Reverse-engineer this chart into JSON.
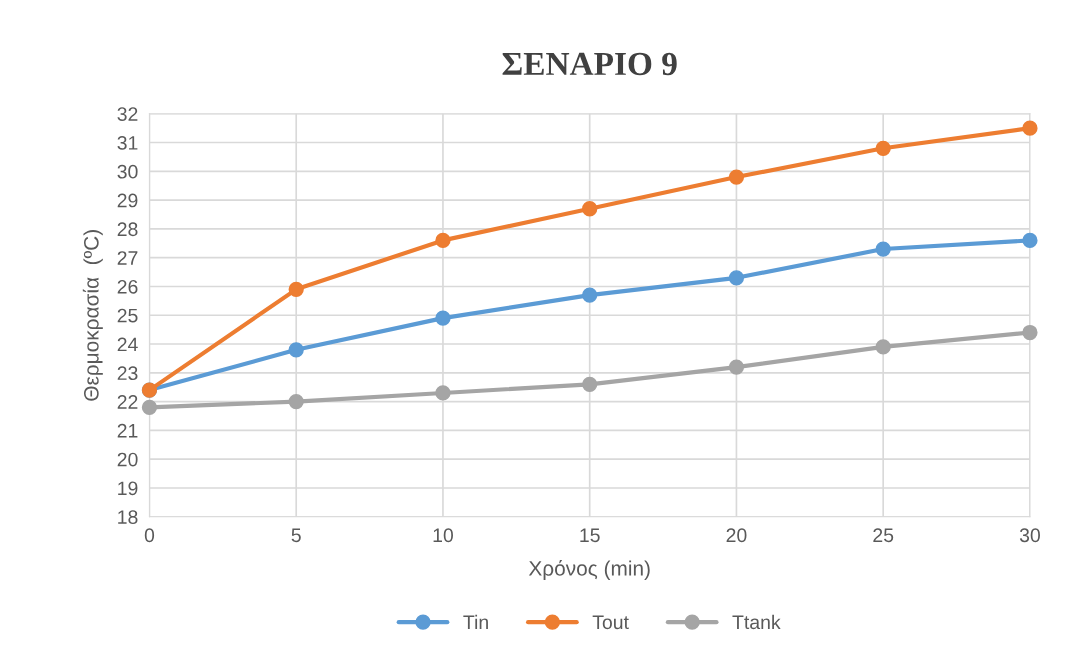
{
  "chart_data": {
    "type": "line",
    "title": "ΣΕΝΑΡΙΟ 9",
    "xlabel": "Χρόνος (min)",
    "ylabel": "Θερμοκρασία  (ºC)",
    "x": [
      0,
      5,
      10,
      15,
      20,
      25,
      30
    ],
    "series": [
      {
        "name": "Tin",
        "color": "#5b9bd5",
        "values": [
          22.4,
          23.8,
          24.9,
          25.7,
          26.3,
          27.3,
          27.6
        ]
      },
      {
        "name": "Tout",
        "color": "#ed7d31",
        "values": [
          22.4,
          25.9,
          27.6,
          28.7,
          29.8,
          30.8,
          31.5
        ]
      },
      {
        "name": "Ttank",
        "color": "#a5a5a5",
        "values": [
          21.8,
          22.0,
          22.3,
          22.6,
          23.2,
          23.9,
          24.4
        ]
      }
    ],
    "xlim": [
      0,
      30
    ],
    "xticks": [
      0,
      5,
      10,
      15,
      20,
      25,
      30
    ],
    "ylim": [
      18,
      32
    ],
    "yticks": [
      18,
      19,
      20,
      21,
      22,
      23,
      24,
      25,
      26,
      27,
      28,
      29,
      30,
      31,
      32
    ],
    "grid": true,
    "legend": "bottom",
    "marker": "circle",
    "line_style": "solid"
  }
}
